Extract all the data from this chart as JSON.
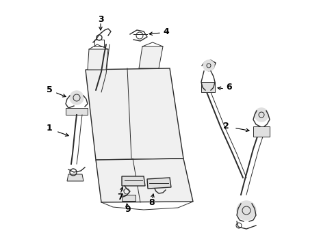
{
  "background_color": "#ffffff",
  "line_color": "#2a2a2a",
  "label_color": "#000000",
  "figsize": [
    4.89,
    3.6
  ],
  "dpi": 100,
  "seat_color": "#f0f0f0",
  "part_color": "#e0e0e0"
}
